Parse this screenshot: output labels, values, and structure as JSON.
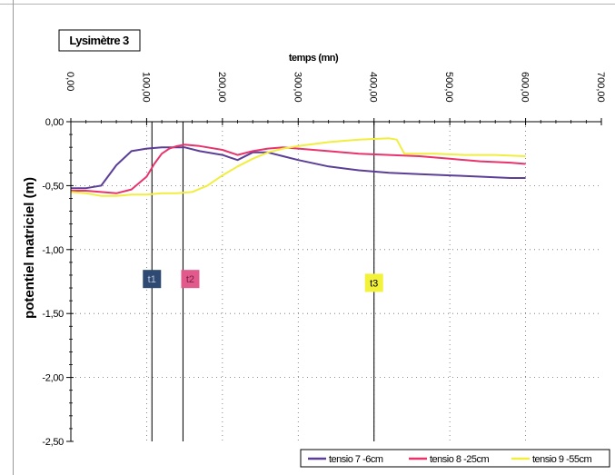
{
  "chart_data": {
    "type": "line",
    "title": "Lysimètre 3",
    "xlabel": "temps (mn)",
    "ylabel": "potentiel matriciel (m)",
    "xlim": [
      0,
      700
    ],
    "ylim": [
      -2.5,
      0
    ],
    "x_axis_position": "top",
    "x_ticks": [
      "0,00",
      "100,00",
      "200,00",
      "300,00",
      "400,00",
      "500,00",
      "600,00",
      "700,00"
    ],
    "y_ticks": [
      "0,00",
      "-0,50",
      "-1,00",
      "-1,50",
      "-2,00",
      "-2,50"
    ],
    "grid": true,
    "legend": "bottom-right",
    "vertical_markers": [
      {
        "label": "t1",
        "x": 107,
        "color": "#2f4a72",
        "text_color": "#b9c7dc",
        "y": -1.23
      },
      {
        "label": "t2",
        "x": 148,
        "color": "#e25a8c",
        "text_color": "#7a1d45",
        "y": -1.23
      },
      {
        "label": "t3",
        "x": 400,
        "color": "#f3f23a",
        "text_color": "#000000",
        "y": -1.26
      }
    ],
    "series": [
      {
        "name": "tensio 7 -6cm",
        "color": "#5b3f96",
        "x": [
          0,
          20,
          40,
          60,
          80,
          100,
          120,
          140,
          150,
          170,
          200,
          220,
          240,
          260,
          280,
          300,
          340,
          380,
          420,
          460,
          500,
          540,
          580,
          600
        ],
        "y": [
          -0.52,
          -0.52,
          -0.5,
          -0.34,
          -0.23,
          -0.21,
          -0.2,
          -0.2,
          -0.2,
          -0.23,
          -0.26,
          -0.3,
          -0.24,
          -0.24,
          -0.27,
          -0.3,
          -0.35,
          -0.38,
          -0.4,
          -0.41,
          -0.42,
          -0.43,
          -0.44,
          -0.44
        ]
      },
      {
        "name": "tensio 8 -25cm",
        "color": "#e8336c",
        "x": [
          0,
          20,
          40,
          60,
          80,
          100,
          110,
          120,
          130,
          140,
          150,
          170,
          200,
          220,
          240,
          260,
          280,
          300,
          340,
          380,
          420,
          460,
          500,
          540,
          580,
          600
        ],
        "y": [
          -0.54,
          -0.54,
          -0.55,
          -0.56,
          -0.53,
          -0.43,
          -0.33,
          -0.25,
          -0.21,
          -0.19,
          -0.18,
          -0.19,
          -0.22,
          -0.26,
          -0.23,
          -0.21,
          -0.2,
          -0.21,
          -0.23,
          -0.25,
          -0.26,
          -0.27,
          -0.29,
          -0.31,
          -0.32,
          -0.33
        ]
      },
      {
        "name": "tensio 9 -55cm",
        "color": "#f1ee3f",
        "x": [
          0,
          20,
          40,
          60,
          80,
          100,
          120,
          140,
          160,
          180,
          200,
          220,
          240,
          260,
          280,
          300,
          340,
          380,
          420,
          430,
          440,
          480,
          520,
          560,
          600
        ],
        "y": [
          -0.55,
          -0.56,
          -0.58,
          -0.58,
          -0.57,
          -0.57,
          -0.56,
          -0.56,
          -0.55,
          -0.5,
          -0.42,
          -0.35,
          -0.29,
          -0.24,
          -0.21,
          -0.19,
          -0.16,
          -0.14,
          -0.13,
          -0.14,
          -0.25,
          -0.25,
          -0.26,
          -0.26,
          -0.27
        ]
      }
    ]
  }
}
